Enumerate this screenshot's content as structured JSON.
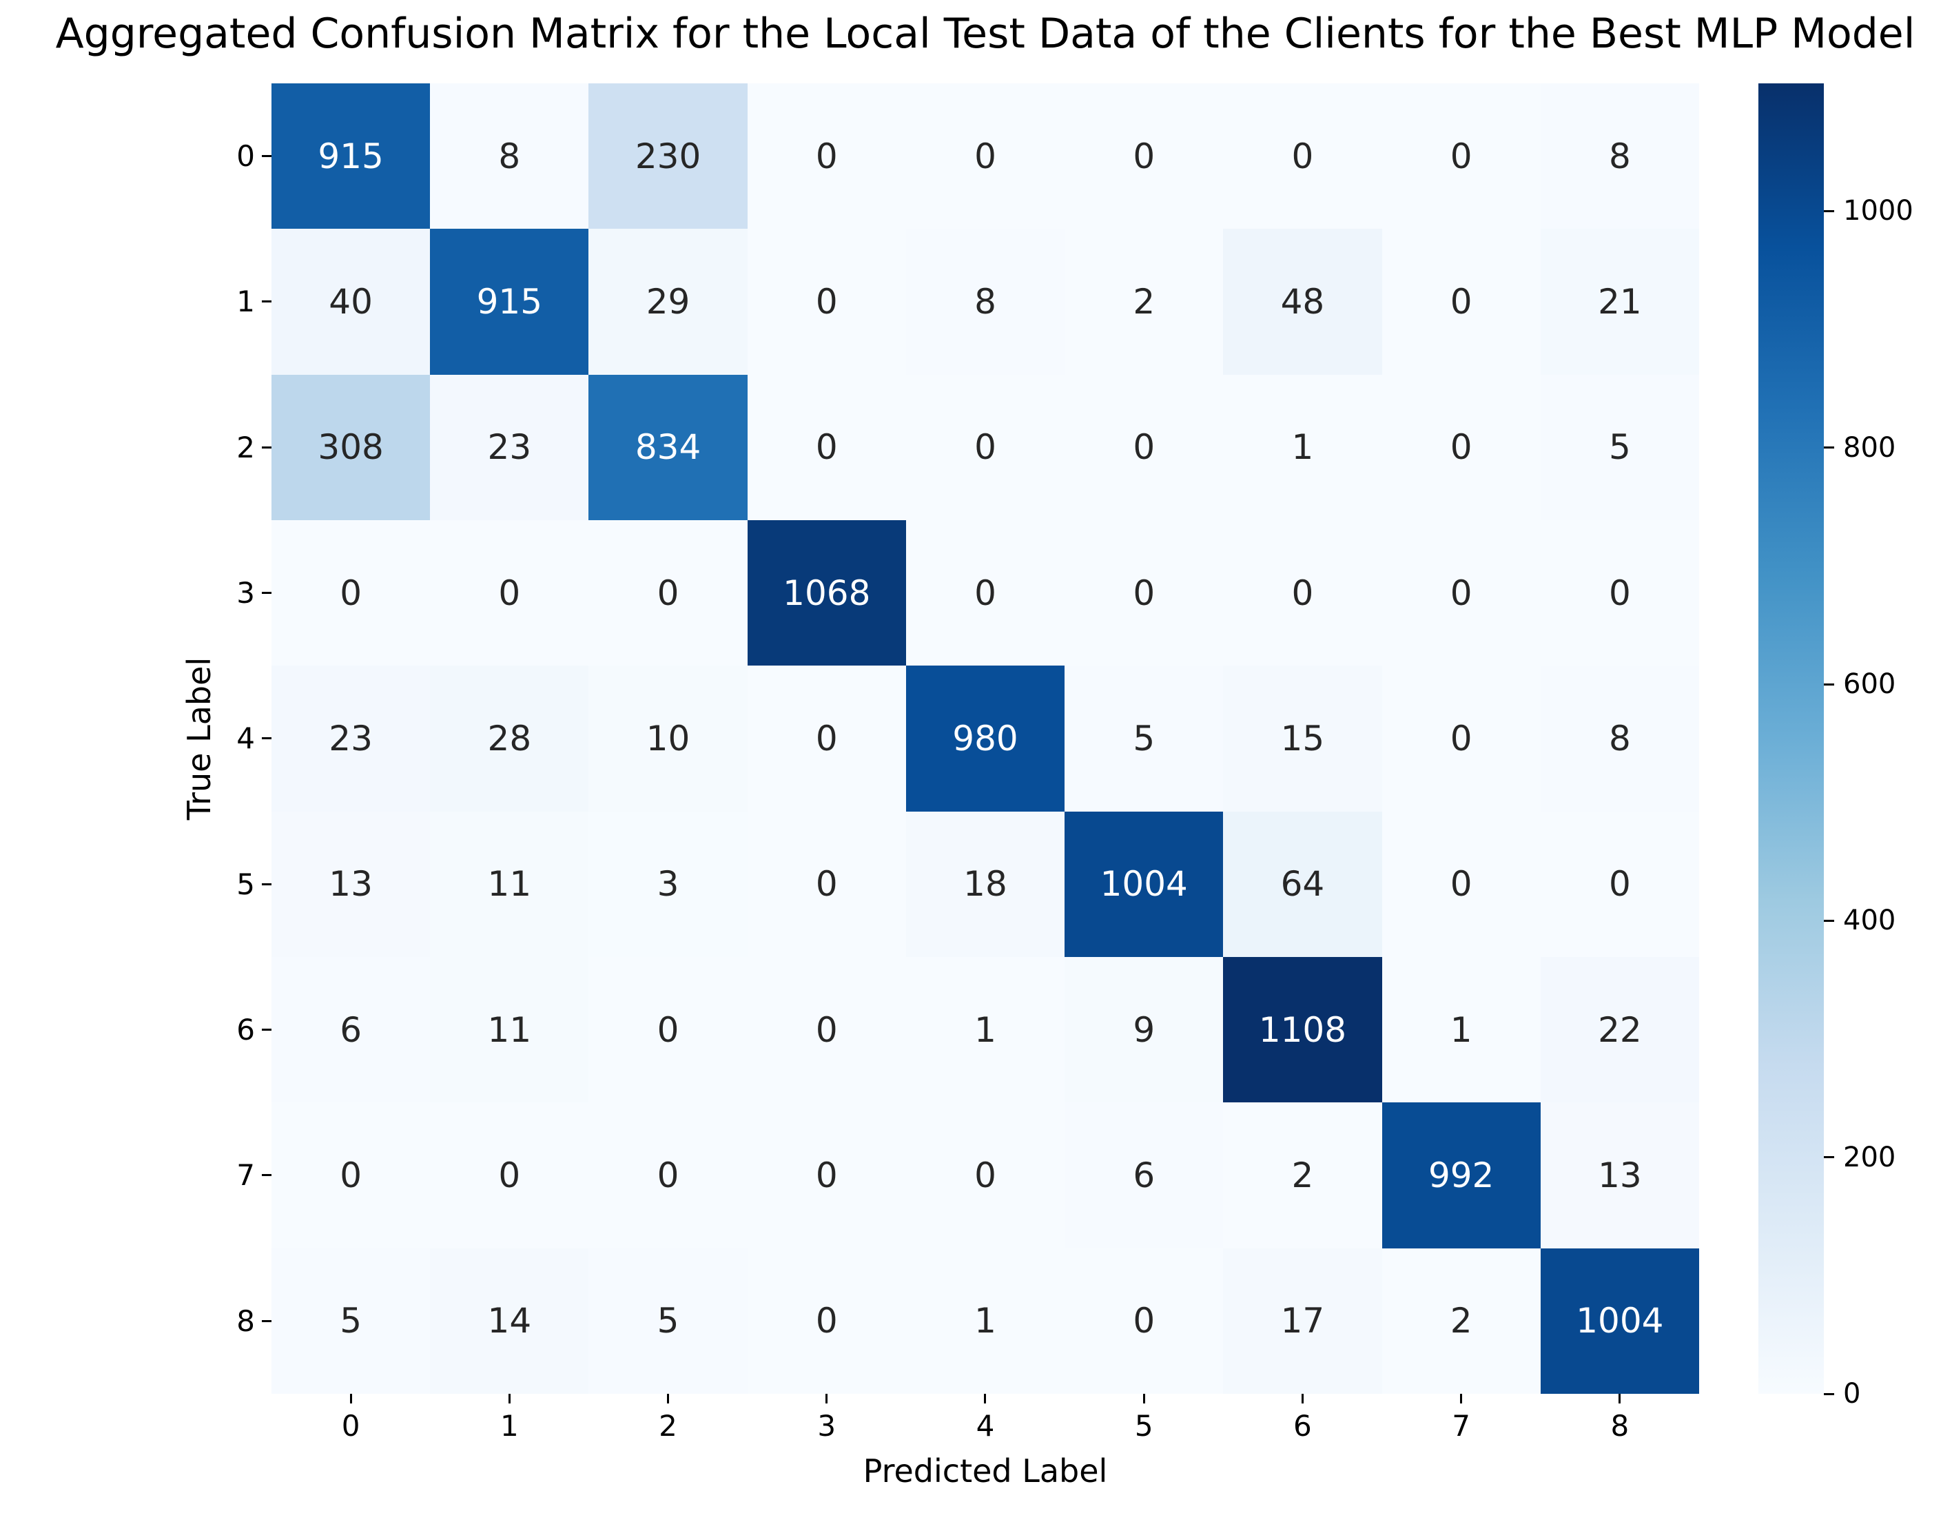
{
  "title": "Aggregated Confusion Matrix for the Local Test Data of the Clients for the Best MLP Model",
  "chart_data": {
    "type": "heatmap",
    "title": "Aggregated Confusion Matrix for the Local Test Data of the Clients for the Best MLP Model",
    "xlabel": "Predicted Label",
    "ylabel": "True Label",
    "x_categories": [
      "0",
      "1",
      "2",
      "3",
      "4",
      "5",
      "6",
      "7",
      "8"
    ],
    "y_categories": [
      "0",
      "1",
      "2",
      "3",
      "4",
      "5",
      "6",
      "7",
      "8"
    ],
    "matrix": [
      [
        915,
        8,
        230,
        0,
        0,
        0,
        0,
        0,
        8
      ],
      [
        40,
        915,
        29,
        0,
        8,
        2,
        48,
        0,
        21
      ],
      [
        308,
        23,
        834,
        0,
        0,
        0,
        1,
        0,
        5
      ],
      [
        0,
        0,
        0,
        1068,
        0,
        0,
        0,
        0,
        0
      ],
      [
        23,
        28,
        10,
        0,
        980,
        5,
        15,
        0,
        8
      ],
      [
        13,
        11,
        3,
        0,
        18,
        1004,
        64,
        0,
        0
      ],
      [
        6,
        11,
        0,
        0,
        1,
        9,
        1108,
        1,
        22
      ],
      [
        0,
        0,
        0,
        0,
        0,
        6,
        2,
        992,
        13
      ],
      [
        5,
        14,
        5,
        0,
        1,
        0,
        17,
        2,
        1004
      ]
    ],
    "vmin": 0,
    "vmax": 1108,
    "colormap": "Blues",
    "colormap_anchors": [
      "#f7fbff",
      "#deebf7",
      "#c6dbef",
      "#9ecae1",
      "#6baed6",
      "#4292c6",
      "#2171b5",
      "#08519c",
      "#08306b"
    ],
    "colorbar_ticks": [
      0,
      200,
      400,
      600,
      800,
      1000
    ],
    "annotation_text_dark": "#262626",
    "annotation_text_light": "#ffffff",
    "legend_position": "right",
    "grid": false
  }
}
